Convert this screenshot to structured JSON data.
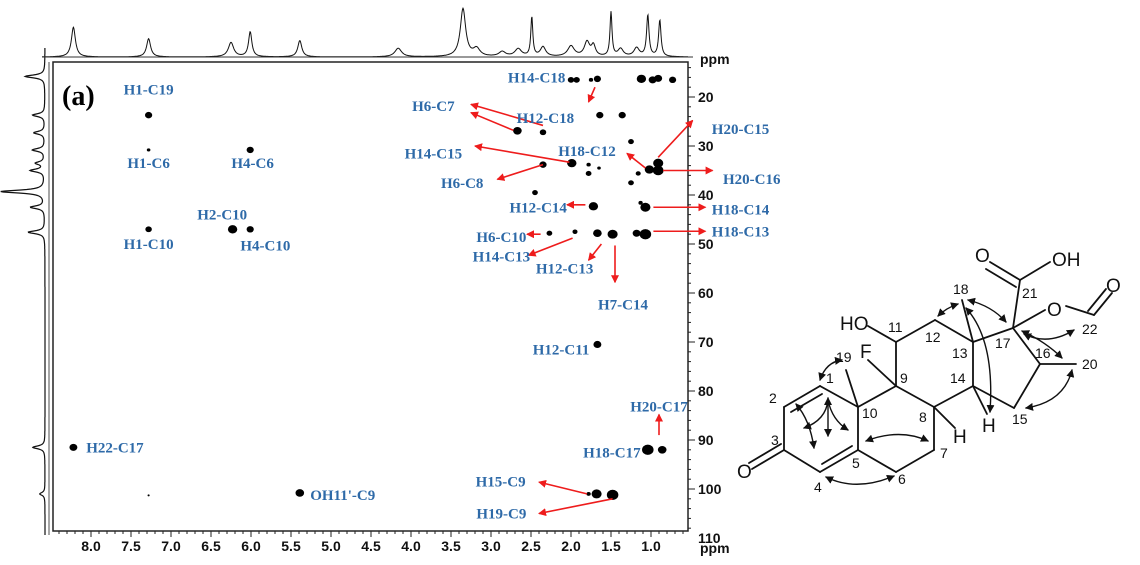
{
  "chart_data": {
    "type": "scatter",
    "title": "",
    "panel_label": "(a)",
    "xlabel": "ppm",
    "ylabel": "ppm",
    "xlim": [
      8.48,
      0.54
    ],
    "ylim": [
      12.9,
      109.5
    ],
    "x_reversed": true,
    "y_reversed": true,
    "xticks": [
      8.0,
      7.5,
      7.0,
      6.5,
      6.0,
      5.5,
      5.0,
      4.5,
      4.0,
      3.5,
      3.0,
      2.5,
      2.0,
      1.5,
      1.0
    ],
    "xtick_labels": [
      "8.0",
      "7.5",
      "7.0",
      "6.5",
      "6.0",
      "5.5",
      "5.0",
      "4.5",
      "4.0",
      "3.5",
      "3.0",
      "2.5",
      "2.0",
      "1.5",
      "1.0"
    ],
    "yticks": [
      20,
      30,
      40,
      50,
      60,
      70,
      80,
      90,
      100,
      110
    ],
    "ytick_labels": [
      "20",
      "30",
      "40",
      "50",
      "60",
      "70",
      "80",
      "90",
      "100",
      "110"
    ],
    "grid": false,
    "cross_peaks": [
      {
        "h": 7.28,
        "c": 23.7,
        "size": 1.0
      },
      {
        "h": 7.28,
        "c": 30.8,
        "size": 0.5
      },
      {
        "h": 6.01,
        "c": 30.8,
        "size": 1.0
      },
      {
        "h": 7.28,
        "c": 47.0,
        "size": 0.9
      },
      {
        "h": 6.23,
        "c": 47.0,
        "size": 1.3
      },
      {
        "h": 6.01,
        "c": 47.0,
        "size": 1.0
      },
      {
        "h": 8.22,
        "c": 91.5,
        "size": 1.1
      },
      {
        "h": 7.28,
        "c": 101.3,
        "size": 0.3
      },
      {
        "h": 5.39,
        "c": 100.8,
        "size": 1.2
      },
      {
        "h": 2.0,
        "c": 16.5,
        "size": 0.9
      },
      {
        "h": 1.93,
        "c": 16.5,
        "size": 0.9
      },
      {
        "h": 1.75,
        "c": 16.5,
        "size": 0.6
      },
      {
        "h": 1.67,
        "c": 16.3,
        "size": 1.0
      },
      {
        "h": 1.12,
        "c": 16.3,
        "size": 1.3
      },
      {
        "h": 0.98,
        "c": 16.5,
        "size": 1.1
      },
      {
        "h": 0.91,
        "c": 16.2,
        "size": 1.1
      },
      {
        "h": 0.73,
        "c": 16.5,
        "size": 1.0
      },
      {
        "h": 1.64,
        "c": 23.7,
        "size": 1.0
      },
      {
        "h": 1.36,
        "c": 23.7,
        "size": 1.0
      },
      {
        "h": 2.67,
        "c": 26.9,
        "size": 1.2
      },
      {
        "h": 2.35,
        "c": 27.2,
        "size": 0.9
      },
      {
        "h": 1.25,
        "c": 29.1,
        "size": 0.8
      },
      {
        "h": 2.35,
        "c": 33.8,
        "size": 1.0
      },
      {
        "h": 1.99,
        "c": 33.5,
        "size": 1.3
      },
      {
        "h": 1.78,
        "c": 33.8,
        "size": 0.6
      },
      {
        "h": 1.78,
        "c": 35.6,
        "size": 0.8
      },
      {
        "h": 1.65,
        "c": 34.5,
        "size": 0.5
      },
      {
        "h": 0.91,
        "c": 33.5,
        "size": 1.4
      },
      {
        "h": 0.91,
        "c": 35.0,
        "size": 1.5
      },
      {
        "h": 1.02,
        "c": 34.8,
        "size": 1.3
      },
      {
        "h": 1.16,
        "c": 35.6,
        "size": 0.7
      },
      {
        "h": 1.25,
        "c": 37.5,
        "size": 0.8
      },
      {
        "h": 2.45,
        "c": 39.5,
        "size": 0.8
      },
      {
        "h": 1.72,
        "c": 42.3,
        "size": 1.3
      },
      {
        "h": 1.07,
        "c": 42.5,
        "size": 1.4
      },
      {
        "h": 1.13,
        "c": 41.6,
        "size": 0.6
      },
      {
        "h": 2.27,
        "c": 47.8,
        "size": 0.8
      },
      {
        "h": 1.95,
        "c": 47.5,
        "size": 0.7
      },
      {
        "h": 1.67,
        "c": 47.8,
        "size": 1.2
      },
      {
        "h": 1.48,
        "c": 48.0,
        "size": 1.4
      },
      {
        "h": 1.07,
        "c": 48.0,
        "size": 1.6
      },
      {
        "h": 1.18,
        "c": 47.8,
        "size": 1.1
      },
      {
        "h": 1.67,
        "c": 70.5,
        "size": 1.1
      },
      {
        "h": 1.04,
        "c": 92.0,
        "size": 1.6
      },
      {
        "h": 0.86,
        "c": 92.0,
        "size": 1.2
      },
      {
        "h": 1.78,
        "c": 101.0,
        "size": 0.6
      },
      {
        "h": 1.68,
        "c": 101.0,
        "size": 1.4
      },
      {
        "h": 1.48,
        "c": 101.2,
        "size": 1.6
      }
    ],
    "annotations": [
      {
        "text": "H1-C19",
        "h": 7.28,
        "c": 18.5,
        "anchor": "middle"
      },
      {
        "text": "H1-C6",
        "h": 7.28,
        "c": 33.5,
        "anchor": "middle"
      },
      {
        "text": "H4-C6",
        "h": 5.98,
        "c": 33.5,
        "anchor": "middle"
      },
      {
        "text": "H2-C10",
        "h": 6.36,
        "c": 44.0,
        "anchor": "middle"
      },
      {
        "text": "H1-C10",
        "h": 7.28,
        "c": 50.0,
        "anchor": "middle"
      },
      {
        "text": "H4-C10",
        "h": 5.82,
        "c": 50.3,
        "anchor": "middle"
      },
      {
        "text": "H22-C17",
        "h": 8.06,
        "c": 91.5,
        "anchor": "start"
      },
      {
        "text": "OH11'-C9",
        "h": 5.26,
        "c": 101.2,
        "anchor": "start"
      },
      {
        "text": "H14-C18",
        "h": 2.07,
        "c": 16.0,
        "anchor": "end"
      },
      {
        "text": "H12-C18",
        "h": 2.32,
        "c": 24.3,
        "anchor": "middle"
      },
      {
        "text": "H6-C7",
        "h": 3.72,
        "c": 21.8,
        "anchor": "middle"
      },
      {
        "text": "H14-C15",
        "h": 3.72,
        "c": 31.5,
        "anchor": "middle"
      },
      {
        "text": "H18-C12",
        "h": 1.8,
        "c": 31.0,
        "anchor": "middle"
      },
      {
        "text": "H6-C8",
        "h": 3.36,
        "c": 37.5,
        "anchor": "middle"
      },
      {
        "text": "H20-C15",
        "h": 0.24,
        "c": 26.5,
        "anchor": "start"
      },
      {
        "text": "H20-C16",
        "h": 0.1,
        "c": 36.7,
        "anchor": "start"
      },
      {
        "text": "H12-C14",
        "h": 2.41,
        "c": 42.5,
        "anchor": "middle"
      },
      {
        "text": "H18-C14",
        "h": 0.24,
        "c": 43.0,
        "anchor": "start"
      },
      {
        "text": "H18-C13",
        "h": 0.24,
        "c": 47.4,
        "anchor": "start"
      },
      {
        "text": "H6-C10",
        "h": 2.87,
        "c": 48.6,
        "anchor": "middle"
      },
      {
        "text": "H14-C13",
        "h": 2.87,
        "c": 52.5,
        "anchor": "middle"
      },
      {
        "text": "H12-C13",
        "h": 2.08,
        "c": 55.0,
        "anchor": "middle"
      },
      {
        "text": "H7-C14",
        "h": 1.35,
        "c": 62.3,
        "anchor": "middle"
      },
      {
        "text": "H12-C11",
        "h": 1.77,
        "c": 71.5,
        "anchor": "end"
      },
      {
        "text": "H20-C17",
        "h": 0.9,
        "c": 83.2,
        "anchor": "middle"
      },
      {
        "text": "H18-C17",
        "h": 1.13,
        "c": 92.5,
        "anchor": "end"
      },
      {
        "text": "H15-C9",
        "h": 2.88,
        "c": 98.5,
        "anchor": "middle"
      },
      {
        "text": "H19-C9",
        "h": 2.87,
        "c": 105.0,
        "anchor": "middle"
      }
    ],
    "arrows": [
      {
        "from_h": 1.7,
        "from_c": 18.0,
        "to_h": 1.78,
        "to_c": 21.0
      },
      {
        "from_h": 2.35,
        "from_c": 25.8,
        "to_h": 3.25,
        "to_c": 21.5
      },
      {
        "from_h": 2.72,
        "from_c": 26.8,
        "to_h": 3.25,
        "to_c": 23.2
      },
      {
        "from_h": 2.02,
        "from_c": 33.3,
        "to_h": 3.2,
        "to_c": 30.0
      },
      {
        "from_h": 2.35,
        "from_c": 33.8,
        "to_h": 2.92,
        "to_c": 36.8
      },
      {
        "from_h": 1.07,
        "from_c": 34.5,
        "to_h": 1.3,
        "to_c": 31.5
      },
      {
        "from_h": 0.91,
        "from_c": 32.3,
        "to_h": 0.48,
        "to_c": 24.8
      },
      {
        "from_h": 0.85,
        "from_c": 35.0,
        "to_h": 0.23,
        "to_c": 35.0
      },
      {
        "from_h": 1.82,
        "from_c": 42.0,
        "to_h": 2.05,
        "to_c": 42.0
      },
      {
        "from_h": 0.97,
        "from_c": 42.5,
        "to_h": 0.32,
        "to_c": 42.5
      },
      {
        "from_h": 0.97,
        "from_c": 47.4,
        "to_h": 0.32,
        "to_c": 47.4
      },
      {
        "from_h": 2.38,
        "from_c": 48.0,
        "to_h": 2.55,
        "to_c": 48.0
      },
      {
        "from_h": 1.98,
        "from_c": 48.8,
        "to_h": 2.53,
        "to_c": 52.3
      },
      {
        "from_h": 1.62,
        "from_c": 50.0,
        "to_h": 1.78,
        "to_c": 53.3
      },
      {
        "from_h": 1.45,
        "from_c": 50.3,
        "to_h": 1.45,
        "to_c": 57.8
      },
      {
        "from_h": 0.9,
        "from_c": 89.0,
        "to_h": 0.9,
        "to_c": 84.8
      },
      {
        "from_h": 1.8,
        "from_c": 101.0,
        "to_h": 2.4,
        "to_c": 98.6
      },
      {
        "from_h": 1.48,
        "from_c": 102.0,
        "to_h": 2.4,
        "to_c": 105.0
      }
    ],
    "top_projection_peaks": [
      {
        "ppm": 8.22,
        "height": 0.62,
        "width": 0.03
      },
      {
        "ppm": 7.28,
        "height": 0.38,
        "width": 0.03
      },
      {
        "ppm": 6.25,
        "height": 0.3,
        "width": 0.04
      },
      {
        "ppm": 6.01,
        "height": 0.52,
        "width": 0.025
      },
      {
        "ppm": 5.39,
        "height": 0.34,
        "width": 0.03
      },
      {
        "ppm": 4.16,
        "height": 0.18,
        "width": 0.05
      },
      {
        "ppm": 3.35,
        "height": 1.0,
        "width": 0.04
      },
      {
        "ppm": 3.18,
        "height": 0.16,
        "width": 0.05
      },
      {
        "ppm": 2.86,
        "height": 0.1,
        "width": 0.05
      },
      {
        "ppm": 2.66,
        "height": 0.16,
        "width": 0.05
      },
      {
        "ppm": 2.49,
        "height": 0.82,
        "width": 0.015
      },
      {
        "ppm": 2.35,
        "height": 0.2,
        "width": 0.04
      },
      {
        "ppm": 2.0,
        "height": 0.22,
        "width": 0.05
      },
      {
        "ppm": 1.8,
        "height": 0.3,
        "width": 0.04
      },
      {
        "ppm": 1.72,
        "height": 0.22,
        "width": 0.03
      },
      {
        "ppm": 1.5,
        "height": 0.92,
        "width": 0.015
      },
      {
        "ppm": 1.38,
        "height": 0.16,
        "width": 0.04
      },
      {
        "ppm": 1.18,
        "height": 0.18,
        "width": 0.04
      },
      {
        "ppm": 1.04,
        "height": 0.86,
        "width": 0.018
      },
      {
        "ppm": 0.89,
        "height": 0.76,
        "width": 0.018
      }
    ],
    "left_projection_peaks": [
      {
        "ppm": 15.8,
        "height": 0.45
      },
      {
        "ppm": 23.7,
        "height": 0.28
      },
      {
        "ppm": 27.3,
        "height": 0.25
      },
      {
        "ppm": 30.8,
        "height": 0.28
      },
      {
        "ppm": 33.5,
        "height": 0.2
      },
      {
        "ppm": 35.0,
        "height": 0.32
      },
      {
        "ppm": 39.3,
        "height": 1.0
      },
      {
        "ppm": 42.5,
        "height": 0.32
      },
      {
        "ppm": 47.6,
        "height": 0.38
      },
      {
        "ppm": 91.5,
        "height": 0.28
      },
      {
        "ppm": 101.0,
        "height": 0.12
      }
    ]
  },
  "structure": {
    "atom_numbers": [
      "1",
      "2",
      "3",
      "4",
      "5",
      "6",
      "7",
      "8",
      "9",
      "10",
      "11",
      "12",
      "13",
      "14",
      "15",
      "16",
      "17",
      "18",
      "19",
      "20",
      "21",
      "22"
    ],
    "heteroatoms": {
      "ketone_O": "O",
      "hydroxyl": "HO",
      "fluorine": "F",
      "acid_O": "O",
      "acid_OH": "OH",
      "ester_O": "O",
      "formyl_O": "O",
      "H8": "H",
      "H14": "H"
    },
    "hmbc_arrow_color": "#000000"
  },
  "colors": {
    "label_blue": "#2e6aa8",
    "arrow_red": "#ee1c1c",
    "peak_black": "#000000",
    "axis_black": "#111111"
  }
}
